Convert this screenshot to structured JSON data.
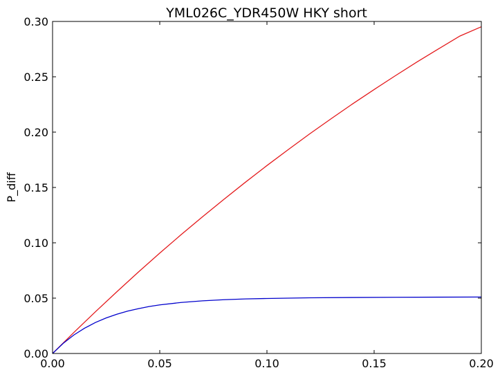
{
  "chart_data": {
    "type": "line",
    "title": "YML026C_YDR450W HKY short",
    "xlabel": "",
    "ylabel": "P_diff",
    "xlim": [
      0,
      0.2
    ],
    "ylim": [
      0,
      0.3
    ],
    "x_ticks": [
      "0.00",
      "0.05",
      "0.10",
      "0.15",
      "0.20"
    ],
    "y_ticks": [
      "0.00",
      "0.05",
      "0.10",
      "0.15",
      "0.20",
      "0.25",
      "0.30"
    ],
    "grid": false,
    "legend": "none",
    "series": [
      {
        "color": "#e41a1c",
        "x": [
          0,
          0.01,
          0.02,
          0.03,
          0.04,
          0.05,
          0.06,
          0.07,
          0.08,
          0.09,
          0.1,
          0.11,
          0.12,
          0.13,
          0.14,
          0.15,
          0.16,
          0.17,
          0.18,
          0.19,
          0.2
        ],
        "y": [
          0,
          0.0191,
          0.0377,
          0.0558,
          0.0735,
          0.0907,
          0.1074,
          0.1236,
          0.1394,
          0.1548,
          0.1698,
          0.1843,
          0.1985,
          0.2122,
          0.2256,
          0.2385,
          0.2511,
          0.2634,
          0.2752,
          0.2868,
          0.2952
        ]
      },
      {
        "color": "#0000cc",
        "x": [
          0,
          0.005,
          0.01,
          0.015,
          0.02,
          0.025,
          0.03,
          0.035,
          0.04,
          0.045,
          0.05,
          0.06,
          0.07,
          0.08,
          0.09,
          0.1,
          0.12,
          0.14,
          0.16,
          0.18,
          0.2
        ],
        "y": [
          0,
          0.0092,
          0.0168,
          0.0229,
          0.028,
          0.0321,
          0.0355,
          0.0383,
          0.0405,
          0.0424,
          0.0439,
          0.0461,
          0.0476,
          0.0486,
          0.0493,
          0.0497,
          0.0503,
          0.0506,
          0.0508,
          0.0509,
          0.051
        ]
      }
    ]
  }
}
